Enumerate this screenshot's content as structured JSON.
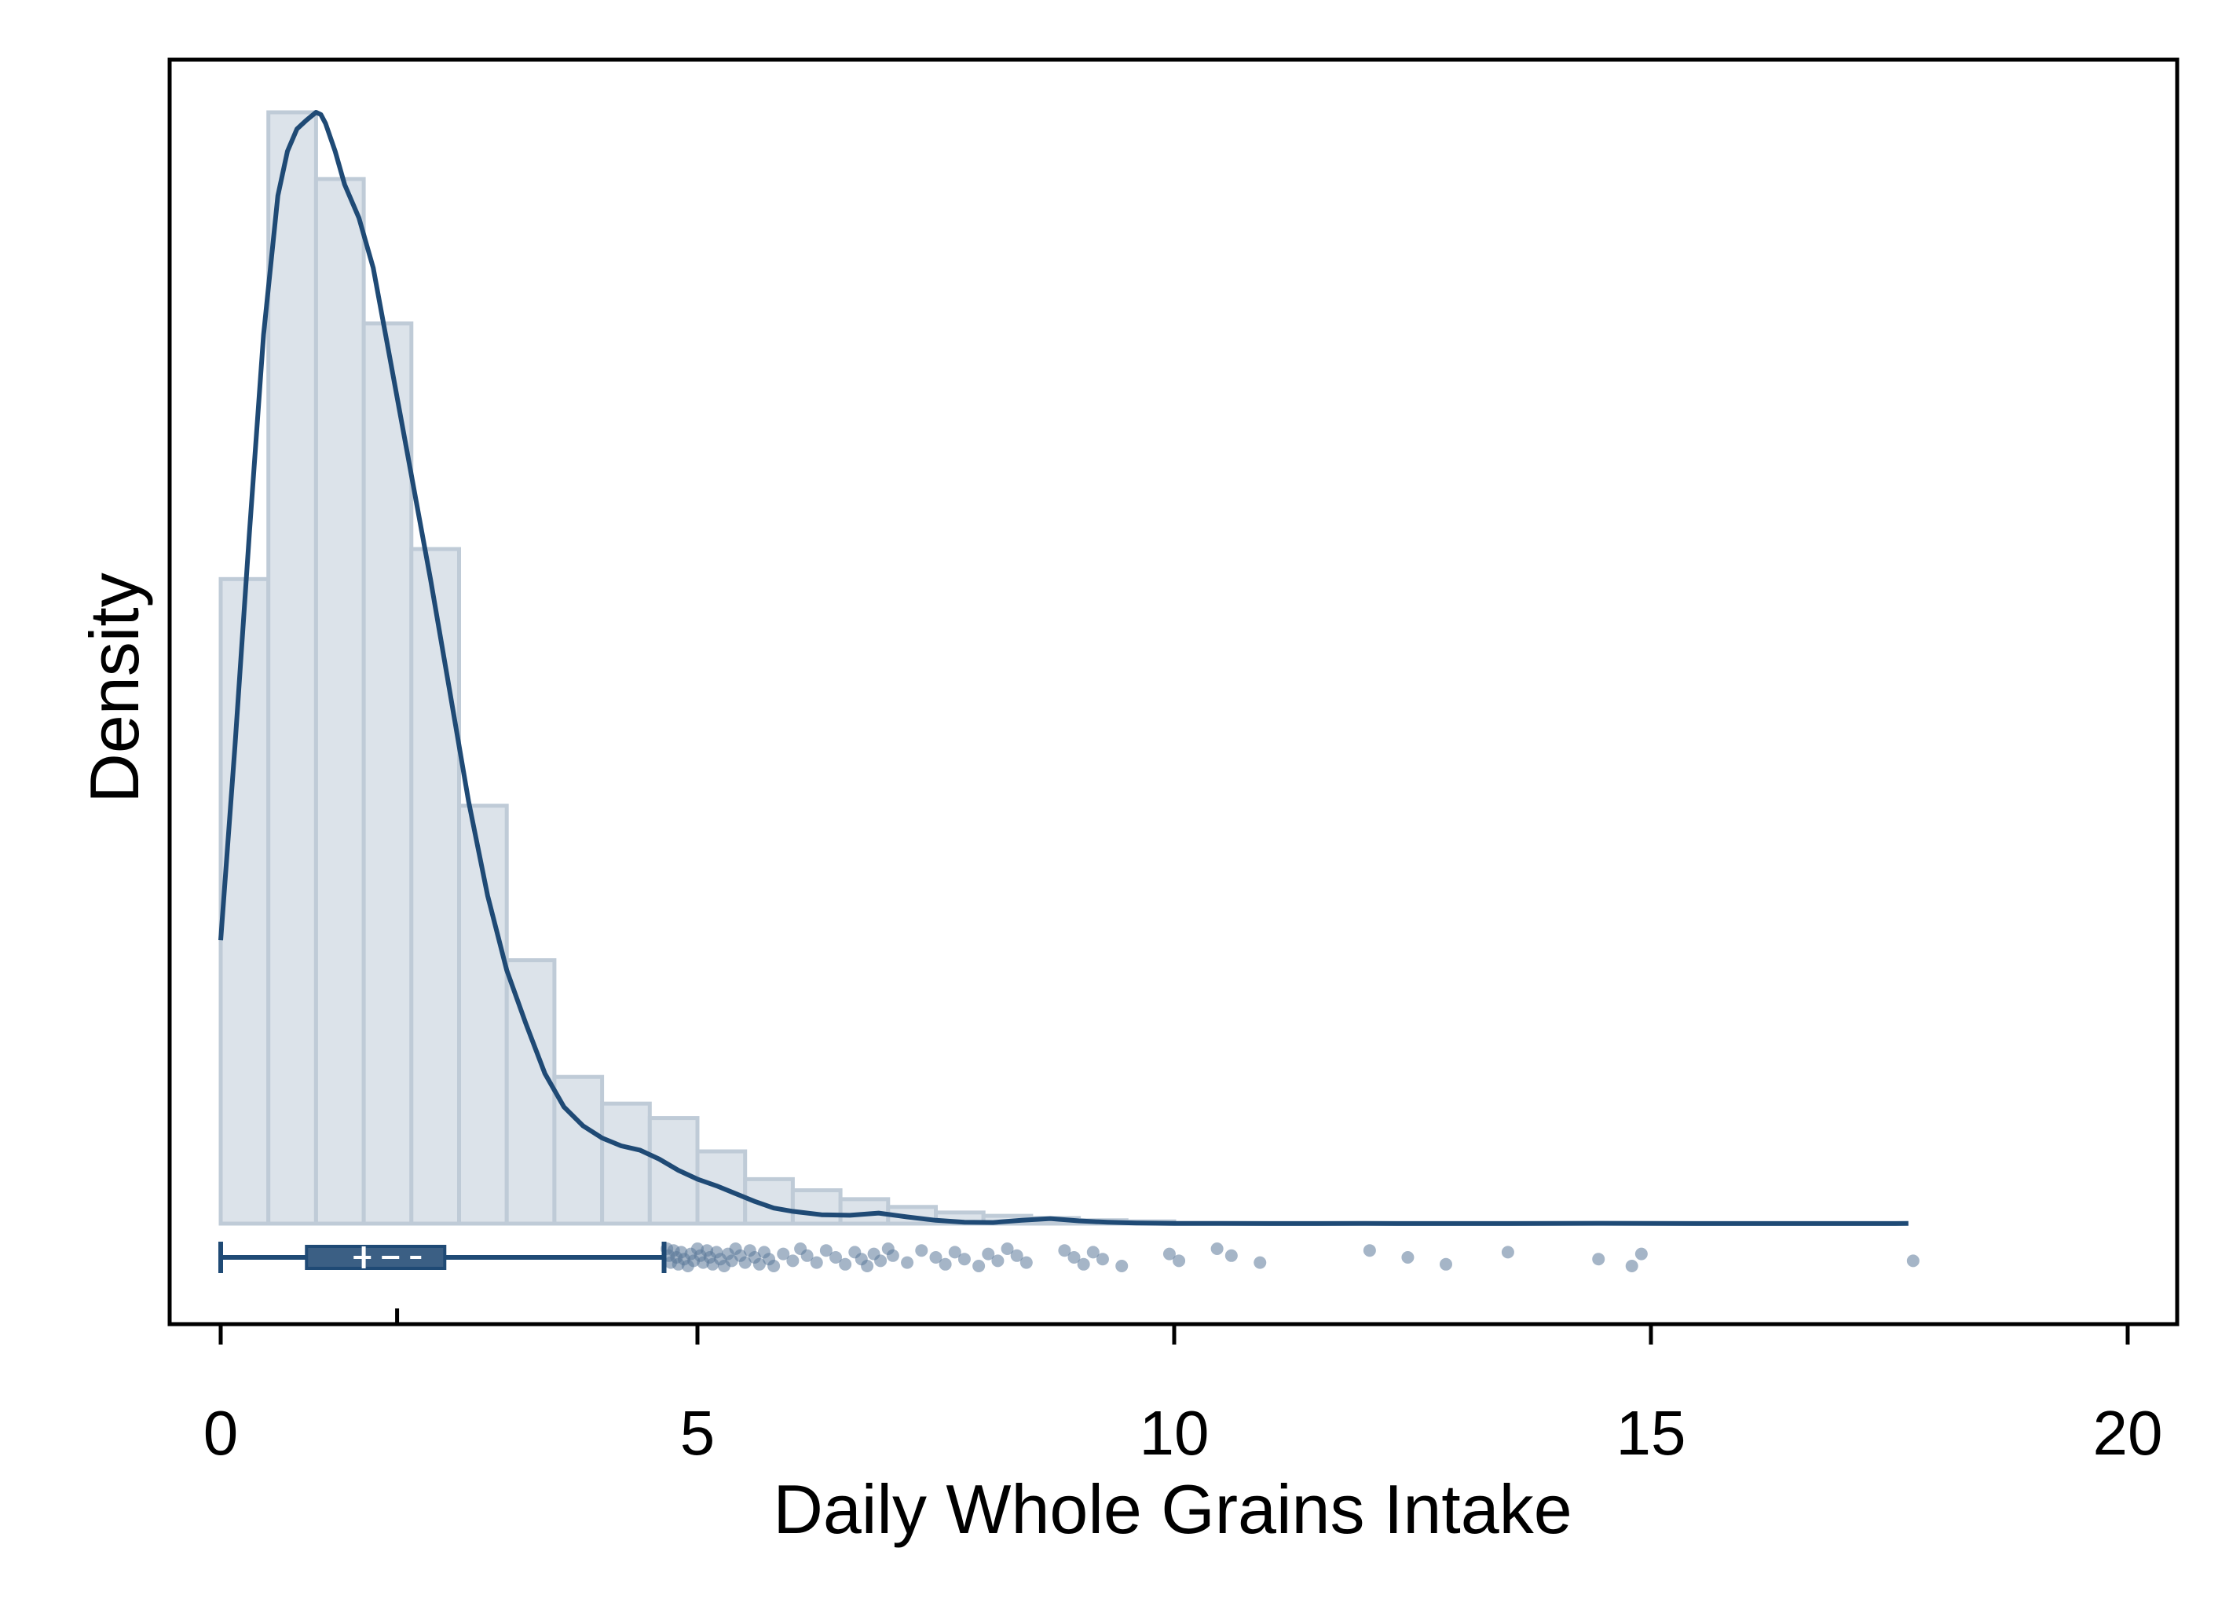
{
  "chart_data": {
    "type": "histogram",
    "xlabel": "Daily Whole Grains Intake",
    "ylabel": "Density",
    "xlim": [
      -0.5,
      20.5
    ],
    "x_ticks": [
      0,
      5,
      10,
      15,
      20
    ],
    "x_tick_labels": [
      "0",
      "5",
      "10",
      "15",
      "20"
    ],
    "y_ticks_shown": false,
    "grid": false,
    "histogram": {
      "bin_width": 0.5,
      "bins": [
        {
          "start": 0.0,
          "height": 0.58
        },
        {
          "start": 0.5,
          "height": 1.0
        },
        {
          "start": 1.0,
          "height": 0.94
        },
        {
          "start": 1.5,
          "height": 0.81
        },
        {
          "start": 2.0,
          "height": 0.607
        },
        {
          "start": 2.5,
          "height": 0.376
        },
        {
          "start": 3.0,
          "height": 0.237
        },
        {
          "start": 3.5,
          "height": 0.132
        },
        {
          "start": 4.0,
          "height": 0.108
        },
        {
          "start": 4.5,
          "height": 0.095
        },
        {
          "start": 5.0,
          "height": 0.065
        },
        {
          "start": 5.5,
          "height": 0.04
        },
        {
          "start": 6.0,
          "height": 0.03
        },
        {
          "start": 6.5,
          "height": 0.022
        },
        {
          "start": 7.0,
          "height": 0.015
        },
        {
          "start": 7.5,
          "height": 0.01
        },
        {
          "start": 8.0,
          "height": 0.007
        },
        {
          "start": 8.5,
          "height": 0.005
        },
        {
          "start": 9.0,
          "height": 0.003
        },
        {
          "start": 9.5,
          "height": 0.002
        }
      ]
    },
    "density_curve": {
      "x": [
        0.0,
        0.15,
        0.3,
        0.45,
        0.6,
        0.7,
        0.8,
        0.9,
        1.0,
        1.05,
        1.1,
        1.2,
        1.3,
        1.45,
        1.6,
        1.75,
        1.9,
        2.05,
        2.2,
        2.4,
        2.6,
        2.8,
        3.0,
        3.2,
        3.4,
        3.6,
        3.8,
        4.0,
        4.2,
        4.4,
        4.6,
        4.8,
        5.0,
        5.2,
        5.4,
        5.6,
        5.8,
        6.0,
        6.3,
        6.6,
        6.9,
        7.2,
        7.5,
        7.8,
        8.1,
        8.4,
        8.7,
        9.0,
        9.3,
        9.6,
        10.0,
        10.5,
        11.0,
        11.5,
        12.0,
        12.5,
        13.0,
        13.5,
        14.0,
        14.5,
        15.0,
        15.5,
        16.0,
        16.5,
        17.0,
        17.5,
        17.7
      ],
      "y": [
        0.255,
        0.43,
        0.62,
        0.8,
        0.925,
        0.965,
        0.985,
        0.993,
        1.0,
        0.998,
        0.99,
        0.965,
        0.935,
        0.905,
        0.86,
        0.79,
        0.72,
        0.65,
        0.58,
        0.48,
        0.38,
        0.295,
        0.228,
        0.18,
        0.135,
        0.105,
        0.088,
        0.077,
        0.07,
        0.066,
        0.058,
        0.048,
        0.04,
        0.034,
        0.027,
        0.02,
        0.014,
        0.011,
        0.008,
        0.0075,
        0.0095,
        0.006,
        0.003,
        0.0012,
        0.001,
        0.003,
        0.0045,
        0.0025,
        0.0012,
        0.0005,
        0.0002,
        0.0002,
        0.0001,
        0.0001,
        0.0002,
        0.0001,
        0.0001,
        0.0001,
        0.0002,
        0.0003,
        0.0002,
        0.0001,
        0.0001,
        0.0001,
        0.0001,
        0.0001,
        0.0002
      ]
    },
    "boxplot": {
      "whisker_low": 0.0,
      "q1": 0.9,
      "median": 1.5,
      "mean": 1.85,
      "q3": 2.35,
      "whisker_high": 4.65,
      "outliers": [
        4.68,
        4.7,
        4.72,
        4.75,
        4.78,
        4.8,
        4.83,
        4.86,
        4.9,
        4.93,
        4.96,
        5.0,
        5.03,
        5.06,
        5.1,
        5.13,
        5.16,
        5.2,
        5.24,
        5.28,
        5.32,
        5.36,
        5.4,
        5.45,
        5.5,
        5.55,
        5.6,
        5.65,
        5.7,
        5.75,
        5.8,
        5.9,
        6.0,
        6.08,
        6.15,
        6.25,
        6.35,
        6.45,
        6.55,
        6.65,
        6.72,
        6.78,
        6.85,
        6.92,
        7.0,
        7.05,
        7.2,
        7.35,
        7.5,
        7.6,
        7.7,
        7.8,
        7.95,
        8.05,
        8.15,
        8.25,
        8.35,
        8.45,
        8.85,
        8.95,
        9.05,
        9.15,
        9.25,
        9.45,
        9.95,
        10.05,
        10.45,
        10.6,
        10.9,
        12.05,
        12.45,
        12.85,
        13.5,
        14.45,
        14.8,
        14.9,
        17.75
      ]
    },
    "colors": {
      "bar_fill": "#dce3ea",
      "bar_stroke": "#bfcbd7",
      "line": "#1f4a75",
      "box_fill": "#3b5f84",
      "marker": "#5b7899"
    }
  }
}
